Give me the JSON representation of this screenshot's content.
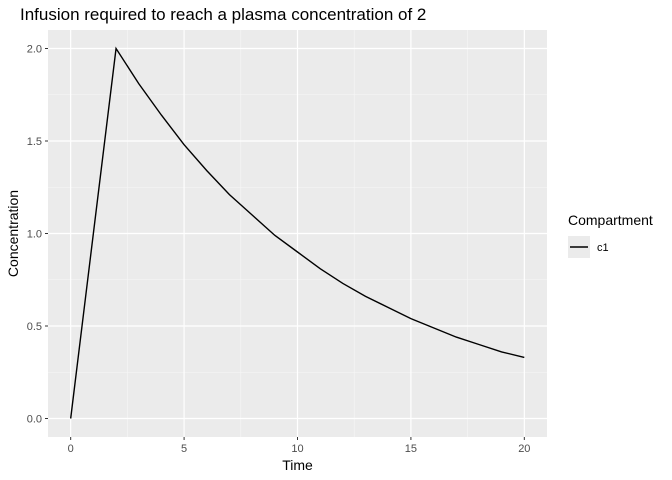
{
  "chart_data": {
    "type": "line",
    "title": "Infusion required to reach a plasma concentration of 2",
    "xlabel": "Time",
    "ylabel": "Concentration",
    "xlim": [
      -1,
      21
    ],
    "ylim": [
      -0.1,
      2.1
    ],
    "x_ticks": [
      0,
      5,
      10,
      15,
      20
    ],
    "x_tick_labels": [
      "0",
      "5",
      "10",
      "15",
      "20"
    ],
    "y_ticks": [
      0,
      0.5,
      1,
      1.5,
      2
    ],
    "y_tick_labels": [
      "0.0",
      "0.5",
      "1.0",
      "1.5",
      "2.0"
    ],
    "grid": true,
    "legend": {
      "title": "Compartment",
      "position": "right"
    },
    "series": [
      {
        "name": "c1",
        "color": "#000000",
        "x": [
          0,
          2,
          3,
          4,
          5,
          6,
          7,
          8,
          9,
          10,
          11,
          12,
          13,
          14,
          15,
          16,
          17,
          18,
          19,
          20
        ],
        "y": [
          0,
          2.0,
          1.81,
          1.64,
          1.48,
          1.34,
          1.21,
          1.1,
          0.99,
          0.9,
          0.81,
          0.73,
          0.66,
          0.6,
          0.54,
          0.49,
          0.44,
          0.4,
          0.36,
          0.33
        ]
      }
    ]
  }
}
